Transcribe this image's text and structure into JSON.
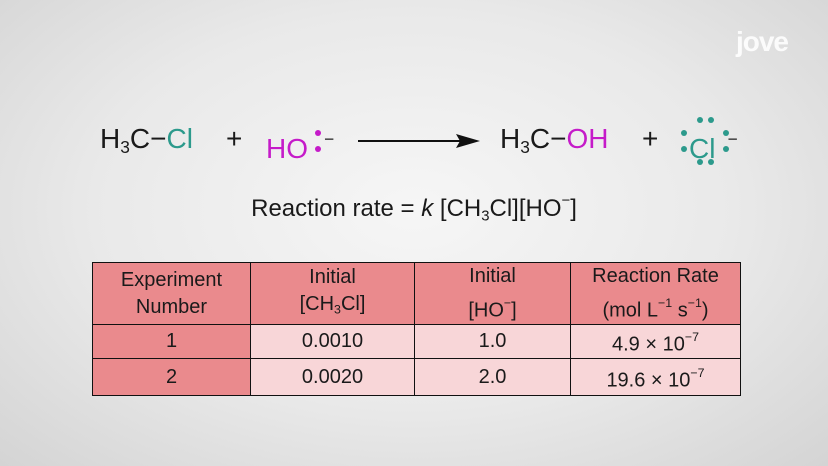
{
  "logo": "jove",
  "equation": {
    "reactant_1": [
      "H",
      "3",
      "C",
      "−",
      "Cl"
    ],
    "plus_1": "+",
    "reactant_2": [
      "HO",
      "−"
    ],
    "product_1": [
      "H",
      "3",
      "C",
      "−",
      "OH"
    ],
    "plus_2": "+",
    "product_2": [
      "Cl",
      "−"
    ]
  },
  "rate_law": [
    "Reaction rate = ",
    "k",
    " [CH",
    "3",
    "Cl][HO",
    "−",
    "]"
  ],
  "table": {
    "header": [
      [
        [
          "Experiment"
        ],
        [
          "Number"
        ]
      ],
      [
        [
          "Initial"
        ],
        [
          "[CH",
          "3",
          "Cl]"
        ]
      ],
      [
        [
          "Initial"
        ],
        [
          "[HO",
          "−",
          "]"
        ]
      ],
      [
        [
          "Reaction Rate"
        ],
        [
          "(mol L",
          "−1",
          " s",
          "−1",
          ")"
        ]
      ]
    ],
    "rows": [
      [
        "1",
        "0.0010",
        "1.0",
        [
          "4.9 × 10",
          "−7"
        ]
      ],
      [
        "2",
        "0.0020",
        "2.0",
        [
          "19.6 × 10",
          "−7"
        ]
      ]
    ]
  }
}
